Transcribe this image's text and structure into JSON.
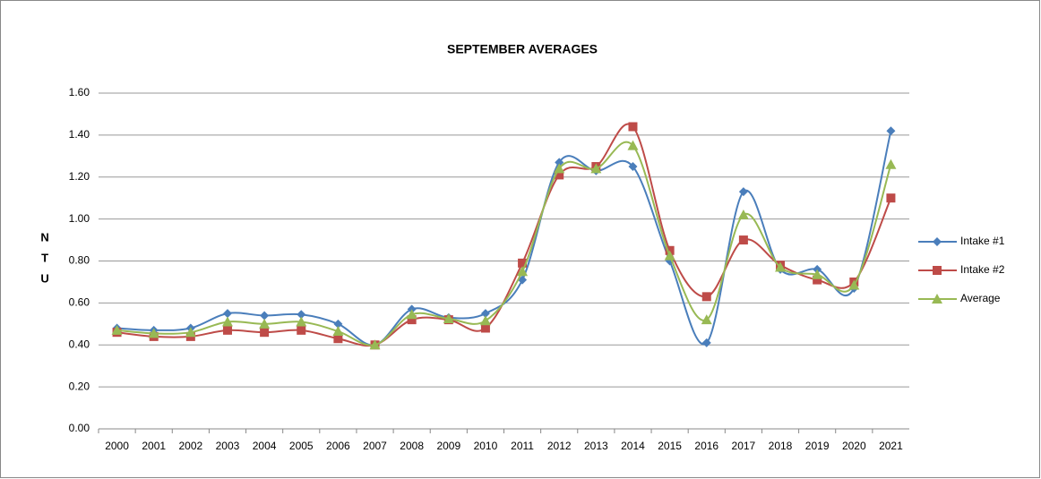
{
  "chart_data": {
    "type": "line",
    "title": "SEPTEMBER AVERAGES",
    "y_label": "NTU",
    "categories": [
      "2000",
      "2001",
      "2002",
      "2003",
      "2004",
      "2005",
      "2006",
      "2007",
      "2008",
      "2009",
      "2010",
      "2011",
      "2012",
      "2013",
      "2014",
      "2015",
      "2016",
      "2017",
      "2018",
      "2019",
      "2020",
      "2021"
    ],
    "series": [
      {
        "name": "Intake #1",
        "color": "#4a7ebb",
        "marker": "diamond",
        "values": [
          0.48,
          0.47,
          0.48,
          0.55,
          0.54,
          0.545,
          0.5,
          0.4,
          0.57,
          0.53,
          0.55,
          0.71,
          1.27,
          1.23,
          1.25,
          0.8,
          0.41,
          1.13,
          0.76,
          0.76,
          0.67,
          1.42
        ]
      },
      {
        "name": "Intake #2",
        "color": "#be4b48",
        "marker": "square",
        "values": [
          0.46,
          0.44,
          0.44,
          0.47,
          0.46,
          0.47,
          0.43,
          0.4,
          0.52,
          0.52,
          0.48,
          0.79,
          1.21,
          1.25,
          1.44,
          0.85,
          0.63,
          0.9,
          0.78,
          0.71,
          0.7,
          1.1
        ]
      },
      {
        "name": "Average",
        "color": "#98b954",
        "marker": "triangle",
        "values": [
          0.47,
          0.455,
          0.46,
          0.51,
          0.5,
          0.51,
          0.465,
          0.4,
          0.545,
          0.525,
          0.515,
          0.75,
          1.24,
          1.24,
          1.35,
          0.825,
          0.52,
          1.02,
          0.77,
          0.735,
          0.685,
          1.26
        ]
      }
    ],
    "ylim": [
      0,
      1.6
    ],
    "yticks": [
      {
        "value": 0,
        "label": "0.00"
      },
      {
        "value": 0.2,
        "label": "0.20"
      },
      {
        "value": 0.4,
        "label": "0.40"
      },
      {
        "value": 0.6,
        "label": "0.60"
      },
      {
        "value": 0.8,
        "label": "0.80"
      },
      {
        "value": 1,
        "label": "1.00"
      },
      {
        "value": 1.2,
        "label": "1.20"
      },
      {
        "value": 1.4,
        "label": "1.40"
      },
      {
        "value": 1.6,
        "label": "1.60"
      }
    ],
    "grid": true,
    "smooth": true,
    "legend": "right"
  }
}
